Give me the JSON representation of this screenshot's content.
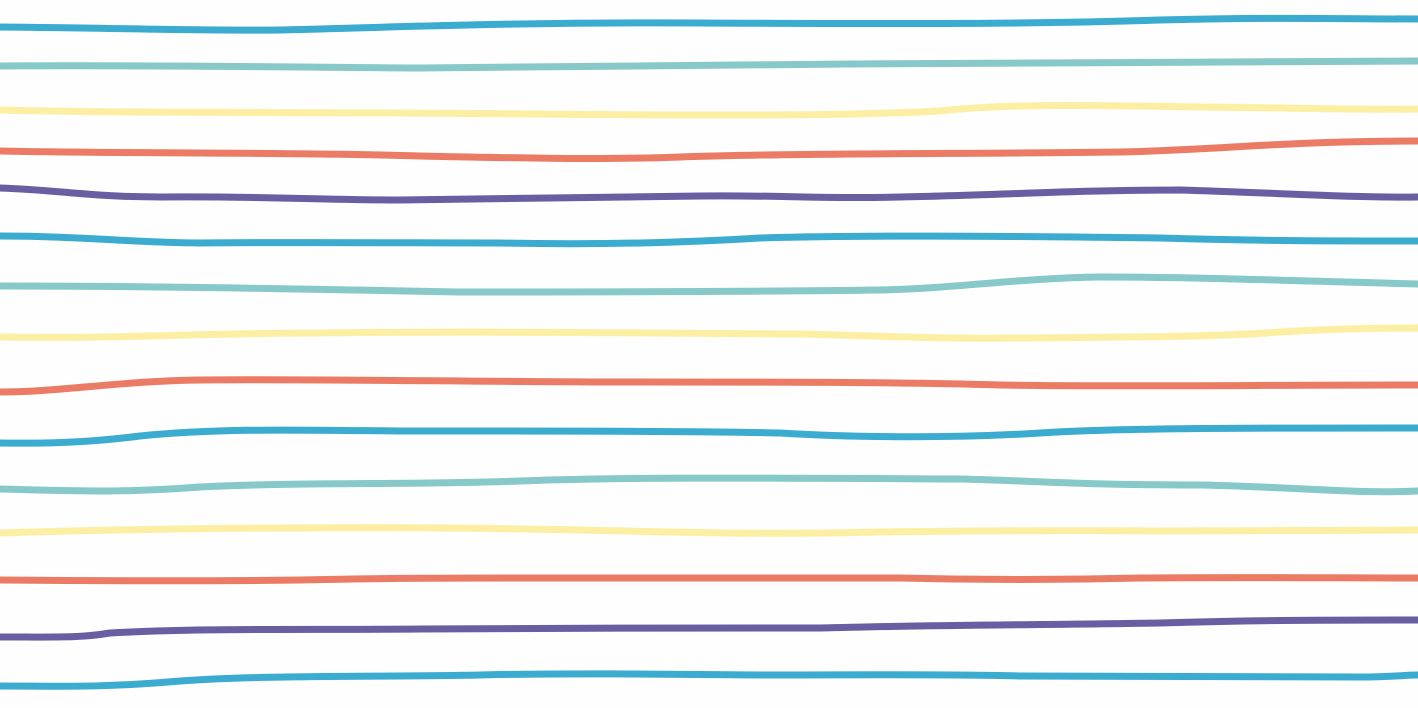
{
  "background": {
    "color": "#fefefe"
  },
  "palette": {
    "blue": "#3bacd0",
    "teal": "#87c8c8",
    "yellow": "#fcefa3",
    "coral": "#ec7b66",
    "purple": "#685ea2"
  },
  "stripes": [
    {
      "name": "stripe-1",
      "color": "blue"
    },
    {
      "name": "stripe-2",
      "color": "teal"
    },
    {
      "name": "stripe-3",
      "color": "yellow"
    },
    {
      "name": "stripe-4",
      "color": "coral"
    },
    {
      "name": "stripe-5",
      "color": "purple"
    },
    {
      "name": "stripe-6",
      "color": "blue"
    },
    {
      "name": "stripe-7",
      "color": "teal"
    },
    {
      "name": "stripe-8",
      "color": "yellow"
    },
    {
      "name": "stripe-9",
      "color": "coral"
    },
    {
      "name": "stripe-10",
      "color": "blue"
    },
    {
      "name": "stripe-11",
      "color": "teal"
    },
    {
      "name": "stripe-12",
      "color": "yellow"
    },
    {
      "name": "stripe-13",
      "color": "coral"
    },
    {
      "name": "stripe-14",
      "color": "purple"
    },
    {
      "name": "stripe-15",
      "color": "blue"
    }
  ]
}
